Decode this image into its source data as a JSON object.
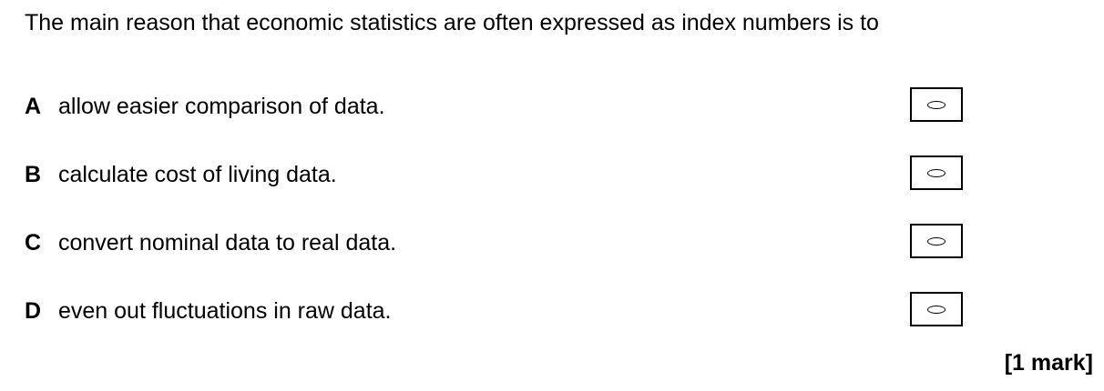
{
  "question": {
    "stem": "The main reason that economic statistics are often expressed as index numbers is to"
  },
  "options": [
    {
      "letter": "A",
      "text": "allow easier comparison of data.",
      "selected": false
    },
    {
      "letter": "B",
      "text": "calculate cost of living data.",
      "selected": false
    },
    {
      "letter": "C",
      "text": "convert nominal data to real data.",
      "selected": false
    },
    {
      "letter": "D",
      "text": "even out fluctuations in raw data.",
      "selected": false
    }
  ],
  "marks": "[1 mark]",
  "icons": {
    "answer_bubble": "oval-bubble-icon"
  }
}
